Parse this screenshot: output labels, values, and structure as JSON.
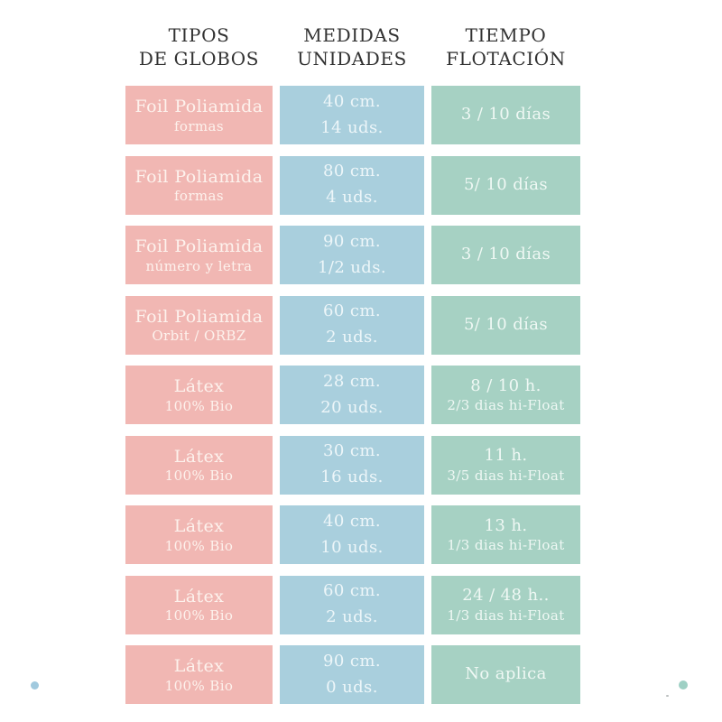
{
  "colors": {
    "type_cell": "#f1b7b3",
    "type_text": "#fdf2ed",
    "measure_cell": "#a9cfdd",
    "measure_text": "#edf6f9",
    "float_cell": "#a6d1c3",
    "float_text": "#eff8f4",
    "header_text": "#323232",
    "dot_left": "#a0c9de",
    "dot_right": "#9ed0c4"
  },
  "headers": [
    {
      "line1": "TIPOS",
      "line2": "DE GLOBOS"
    },
    {
      "line1": "MEDIDAS",
      "line2": "UNIDADES"
    },
    {
      "line1": "TIEMPO",
      "line2": "FLOTACIÓN"
    }
  ],
  "rows": [
    {
      "type": {
        "line1": "Foil Poliamida",
        "line2": "formas"
      },
      "measure": {
        "line1": "40 cm.",
        "line2": "14 uds."
      },
      "float": {
        "line1": "3 / 10 días",
        "line2": ""
      }
    },
    {
      "type": {
        "line1": "Foil Poliamida",
        "line2": "formas"
      },
      "measure": {
        "line1": "80 cm.",
        "line2": "4 uds."
      },
      "float": {
        "line1": "5/ 10 días",
        "line2": ""
      }
    },
    {
      "type": {
        "line1": "Foil Poliamida",
        "line2": "número y letra"
      },
      "measure": {
        "line1": "90 cm.",
        "line2": "1/2 uds."
      },
      "float": {
        "line1": "3 / 10 días",
        "line2": ""
      }
    },
    {
      "type": {
        "line1": "Foil Poliamida",
        "line2": "Orbit / ORBZ"
      },
      "measure": {
        "line1": "60 cm.",
        "line2": "2 uds."
      },
      "float": {
        "line1": "5/ 10 días",
        "line2": ""
      }
    },
    {
      "type": {
        "line1": "Látex",
        "line2": "100% Bio"
      },
      "measure": {
        "line1": "28 cm.",
        "line2": "20 uds."
      },
      "float": {
        "line1": "8 / 10 h.",
        "line2": "2/3 dias hi-Float"
      }
    },
    {
      "type": {
        "line1": "Látex",
        "line2": "100% Bio"
      },
      "measure": {
        "line1": "30 cm.",
        "line2": "16 uds."
      },
      "float": {
        "line1": "11 h.",
        "line2": "3/5 dias hi-Float"
      }
    },
    {
      "type": {
        "line1": "Látex",
        "line2": "100% Bio"
      },
      "measure": {
        "line1": "40 cm.",
        "line2": "10 uds."
      },
      "float": {
        "line1": "13 h.",
        "line2": "1/3 dias hi-Float"
      }
    },
    {
      "type": {
        "line1": "Látex",
        "line2": "100% Bio"
      },
      "measure": {
        "line1": "60 cm.",
        "line2": "2 uds."
      },
      "float": {
        "line1": "24 / 48 h..",
        "line2": "1/3 dias hi-Float"
      }
    },
    {
      "type": {
        "line1": "Látex",
        "line2": "100% Bio"
      },
      "measure": {
        "line1": "90 cm.",
        "line2": "0 uds."
      },
      "float": {
        "line1": "No aplica",
        "line2": ""
      }
    }
  ],
  "chart_data": {
    "type": "table",
    "title": "",
    "columns": [
      "TIPOS DE GLOBOS",
      "MEDIDAS UNIDADES",
      "TIEMPO FLOTACIÓN"
    ],
    "rows": [
      [
        "Foil Poliamida\nformas",
        "40 cm.\n14 uds.",
        "3 / 10 días"
      ],
      [
        "Foil Poliamida\nformas",
        "80 cm.\n4 uds.",
        "5/ 10 días"
      ],
      [
        "Foil Poliamida\nnúmero y letra",
        "90 cm.\n1/2 uds.",
        "3 / 10 días"
      ],
      [
        "Foil Poliamida\nOrbit / ORBZ",
        "60 cm.\n2 uds.",
        "5/ 10 días"
      ],
      [
        "Látex\n100% Bio",
        "28 cm.\n20 uds.",
        "8 / 10 h.\n2/3 dias hi-Float"
      ],
      [
        "Látex\n100% Bio",
        "30 cm.\n16 uds.",
        "11 h.\n3/5 dias hi-Float"
      ],
      [
        "Látex\n100% Bio",
        "40 cm.\n10 uds.",
        "13 h.\n1/3 dias hi-Float"
      ],
      [
        "Látex\n100% Bio",
        "60 cm.\n2 uds.",
        "24 / 48 h..\n1/3 dias hi-Float"
      ],
      [
        "Látex\n100% Bio",
        "90 cm.\n0 uds.",
        "No aplica"
      ]
    ],
    "layout": {
      "column_colors": [
        "#f1b7b3",
        "#a9cfdd",
        "#a6d1c3"
      ],
      "grid": false,
      "legend": "none"
    }
  }
}
